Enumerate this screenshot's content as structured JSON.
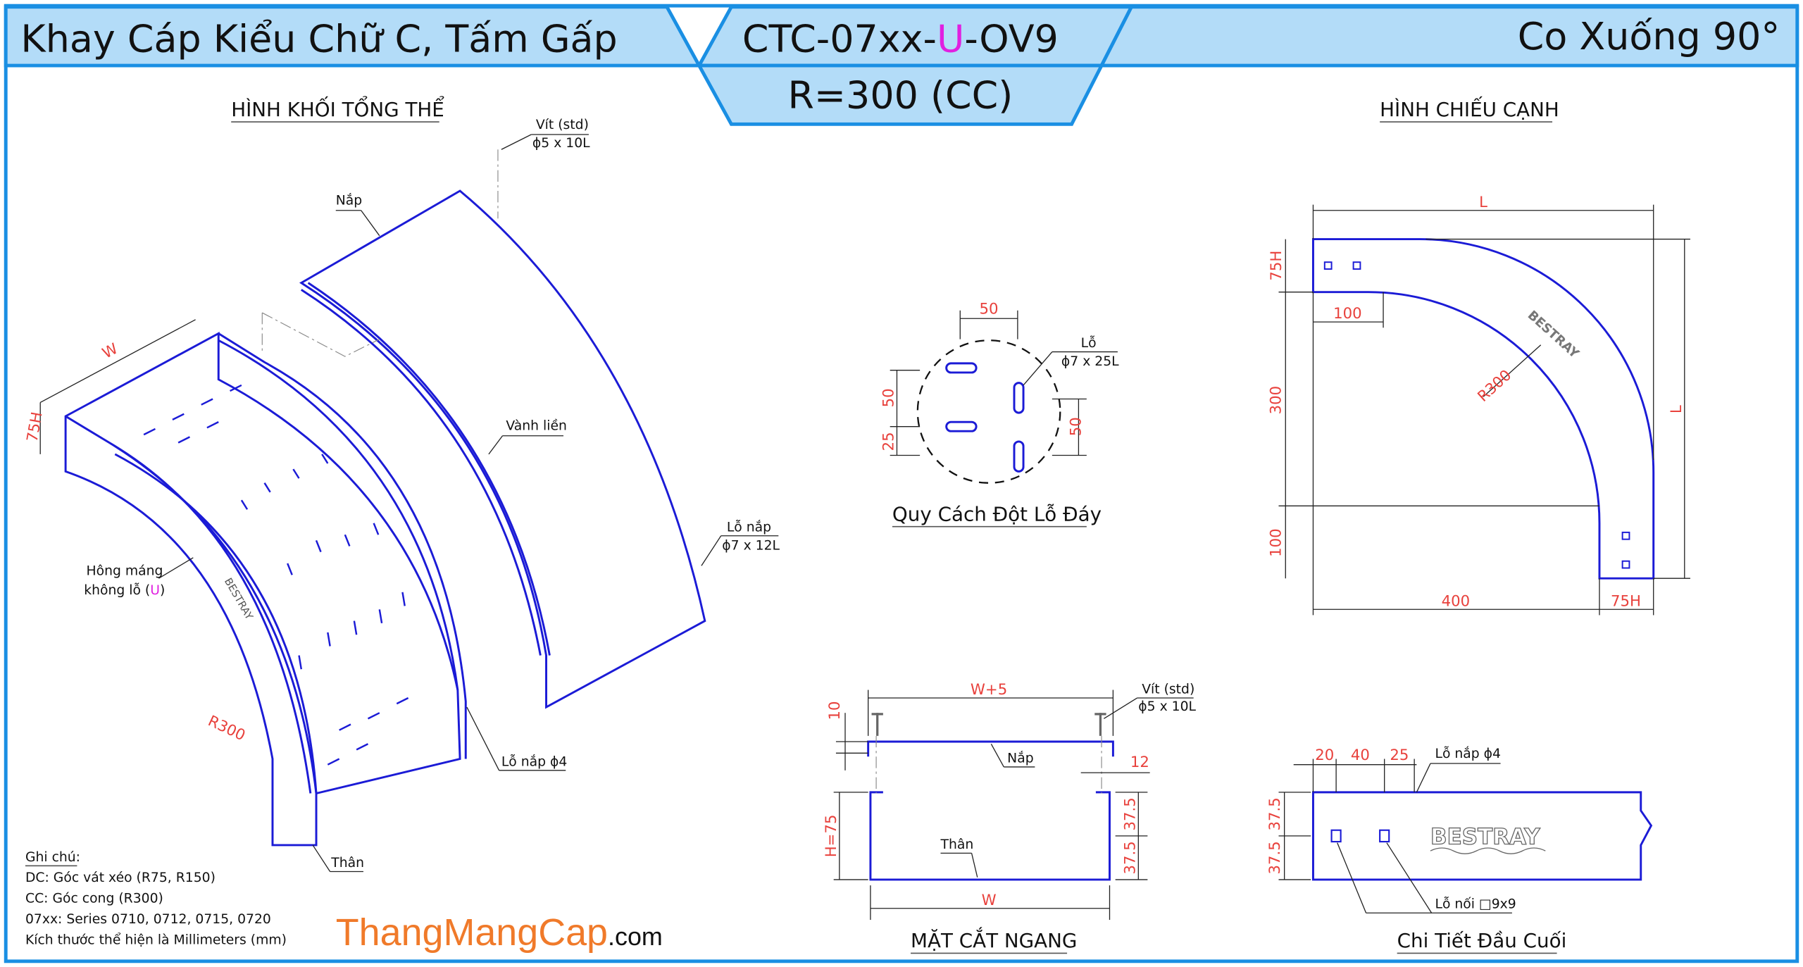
{
  "header": {
    "title_left": "Khay Cáp Kiểu Chữ C, Tấm Gấp",
    "code_prefix": "CTC-07xx-",
    "code_variant": "U",
    "code_suffix": "-OV9",
    "radius_label": "R=300 (CC)",
    "title_right": "Co Xuống 90°",
    "accent_color": "#1a8fe3",
    "band_color": "#b3dcf8",
    "variant_color": "#e020e0"
  },
  "iso_view": {
    "title": "HÌNH KHỐI TỔNG THỂ",
    "screw_label": "Vít (std)",
    "screw_size": "ϕ5 x 10L",
    "cover_label": "Nắp",
    "rim_label": "Vành liền",
    "cover_hole_label": "Lỗ nắp",
    "cover_hole_size": "ϕ7 x 12L",
    "side_label_1": "Hông máng",
    "side_label_2_prefix": "không lỗ (",
    "side_label_2_variant": "U",
    "side_label_2_suffix": ")",
    "cover_hole_small": "Lỗ nắp ϕ4",
    "body_label": "Thân",
    "dim_w": "W",
    "dim_h": "75H",
    "dim_r": "R300",
    "brand": "BESTRAY"
  },
  "notes": {
    "heading": "Ghi chú:",
    "lines": [
      "DC: Góc vát xéo (R75, R150)",
      "CC: Góc cong (R300)",
      "07xx: Series 0710, 0712, 0715, 0720",
      "Kích thước thể hiện là Millimeters (mm)"
    ]
  },
  "watermark": {
    "main": "ThangMangCap",
    "suffix": ".com",
    "color": "#f07a2a"
  },
  "hole_pattern": {
    "title": "Quy Cách Đột Lỗ Đáy",
    "hole_label": "Lỗ",
    "hole_size": "ϕ7 x 25L",
    "dim_top": "50",
    "dim_left_upper": "50",
    "dim_left_lower": "25",
    "dim_right": "50"
  },
  "side_view": {
    "title": "HÌNH CHIẾU CẠNH",
    "dim_l_top": "L",
    "dim_l_right": "L",
    "dim_75h_left": "75H",
    "dim_100_top": "100",
    "dim_300": "300",
    "dim_100_left": "100",
    "dim_400": "400",
    "dim_75h_bottom": "75H",
    "dim_r": "R300",
    "brand": "BESTRAY"
  },
  "cross_section": {
    "title": "MẶT CẮT NGANG",
    "dim_w5": "W+5",
    "dim_10": "10",
    "dim_12": "12",
    "dim_h": "H=75",
    "dim_375_upper": "37.5",
    "dim_375_lower": "37.5",
    "dim_w": "W",
    "screw_label": "Vít (std)",
    "screw_size": "ϕ5 x 10L",
    "cover_label": "Nắp",
    "body_label": "Thân"
  },
  "end_detail": {
    "title": "Chi Tiết Đầu Cuối",
    "dim_20": "20",
    "dim_40": "40",
    "dim_25": "25",
    "cover_hole": "Lỗ nắp ϕ4",
    "dim_375_upper": "37.5",
    "dim_375_lower": "37.5",
    "joint_hole": "Lỗ nối □9x9",
    "brand": "BESTRAY"
  }
}
